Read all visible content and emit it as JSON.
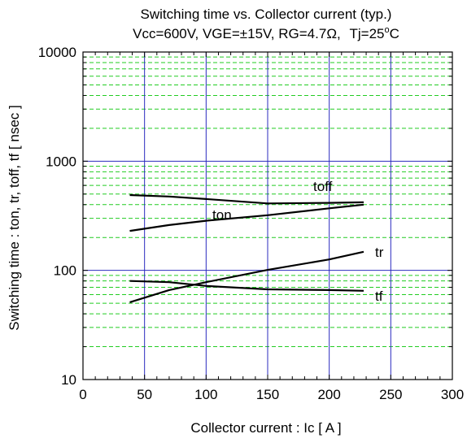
{
  "chart_data": {
    "type": "line",
    "title": "Switching time vs. Collector current (typ.)",
    "conditions_prefix": "Vcc=600V, VGE=±15V, RG=4.7Ω,",
    "conditions_tj": "Tj=25",
    "conditions_deg": "o",
    "conditions_unit": "C",
    "xlabel": "Collector current : Ic [ A ]",
    "ylabel": "Switching time : ton, tr, toff, tf [ nsec ]",
    "xlim": [
      0,
      300
    ],
    "ylim": [
      10,
      10000
    ],
    "yscale": "log",
    "x_ticks": [
      "0",
      "50",
      "100",
      "150",
      "200",
      "250",
      "300"
    ],
    "y_ticks": [
      "10",
      "100",
      "1000",
      "10000"
    ],
    "grid": true,
    "colors": {
      "major_grid": "#2b2bbf",
      "minor_grid": "#22cc22",
      "curve": "#000000",
      "axis": "#000000"
    },
    "series": [
      {
        "name": "toff",
        "x": [
          38,
          70,
          100,
          150,
          200,
          228
        ],
        "y": [
          490,
          475,
          450,
          410,
          415,
          420
        ]
      },
      {
        "name": "ton",
        "x": [
          38,
          70,
          100,
          150,
          200,
          228
        ],
        "y": [
          230,
          260,
          285,
          320,
          370,
          400
        ]
      },
      {
        "name": "tr",
        "x": [
          38,
          70,
          100,
          150,
          200,
          228
        ],
        "y": [
          51,
          66,
          78,
          101,
          126,
          148
        ]
      },
      {
        "name": "tf",
        "x": [
          38,
          70,
          100,
          150,
          200,
          228
        ],
        "y": [
          80,
          78,
          72,
          67,
          66,
          65
        ]
      }
    ]
  }
}
